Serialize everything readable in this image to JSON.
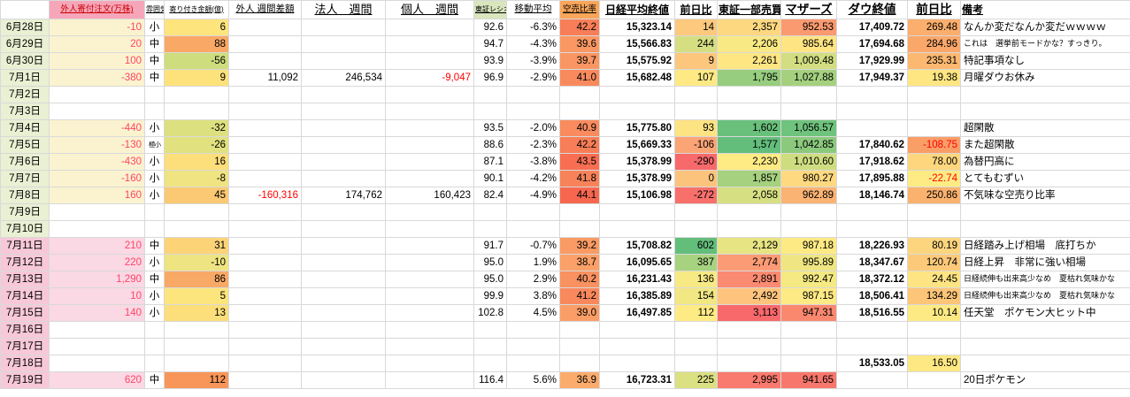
{
  "columns": [
    {
      "key": "date",
      "w": 55,
      "align": "c",
      "header": {
        "text": "",
        "cls": "h-small"
      }
    },
    {
      "key": "foreign-open-order",
      "w": 108,
      "align": "r",
      "fg": "#FF4466",
      "header": {
        "text": "外人寄付注文(万株)",
        "bg": "#F6A6B9",
        "fg": "#CC0000",
        "cls": "h-small"
      }
    },
    {
      "key": "mood",
      "w": 22,
      "align": "c",
      "header": {
        "text": "雰囲気",
        "cls": "h-tiny"
      }
    },
    {
      "key": "opening-amount",
      "w": 73,
      "align": "r",
      "header": {
        "text": "寄り付き金額(億)",
        "cls": "h-tiny"
      }
    },
    {
      "key": "foreign-weekly-diff",
      "w": 82,
      "align": "r",
      "header": {
        "text": "外人 週間差額",
        "cls": "h-mid"
      }
    },
    {
      "key": "corporate-weekly",
      "w": 95,
      "align": "r",
      "header": {
        "text": "法人　週間",
        "cls": "h-large"
      }
    },
    {
      "key": "individual-weekly",
      "w": 100,
      "align": "r",
      "header": {
        "text": "個人　週間",
        "cls": "h-large"
      }
    },
    {
      "key": "tse-ratio",
      "w": 37,
      "align": "r",
      "header": {
        "text": "東証レシオ",
        "bg": "#D9E5BD",
        "cls": "h-tiny"
      }
    },
    {
      "key": "moving-average",
      "w": 60,
      "align": "r",
      "header": {
        "text": "移動平均",
        "cls": "h-mid"
      }
    },
    {
      "key": "short-sell-ratio",
      "w": 45,
      "align": "r",
      "header": {
        "text": "空売比率",
        "bg": "#F9A65A",
        "cls": "h-small"
      }
    },
    {
      "key": "nikkei-close",
      "w": 85,
      "align": "r",
      "bold": true,
      "header": {
        "text": "日経平均終値",
        "cls": "h-bold"
      }
    },
    {
      "key": "nikkei-prev-diff",
      "w": 48,
      "align": "r",
      "header": {
        "text": "前日比",
        "cls": "h-bold"
      }
    },
    {
      "key": "tse1-turnover",
      "w": 72,
      "align": "r",
      "header": {
        "text": "東証一部売買",
        "cls": "h-bold"
      }
    },
    {
      "key": "mothers",
      "w": 63,
      "align": "r",
      "header": {
        "text": "マザーズ",
        "cls": "h-big"
      }
    },
    {
      "key": "dow-close",
      "w": 80,
      "align": "r",
      "bold": true,
      "header": {
        "text": "ダウ終値",
        "cls": "h-big"
      }
    },
    {
      "key": "dow-prev-diff",
      "w": 60,
      "align": "r",
      "header": {
        "text": "前日比",
        "cls": "h-big"
      }
    },
    {
      "key": "remarks",
      "w": 192,
      "align": "l",
      "headerAlign": "l",
      "header": {
        "text": "備考",
        "cls": "h-bold"
      }
    }
  ],
  "rows": [
    {
      "date": "6月28日",
      "cells": [
        {
          "v": "6月28日",
          "bg": "#E9F0D3"
        },
        {
          "v": "-10",
          "bg": "#FBF3CF"
        },
        {
          "v": "小"
        },
        {
          "v": "6",
          "bg": "#FDE47C"
        },
        null,
        null,
        null,
        {
          "v": "92.6"
        },
        {
          "v": "-6.3%"
        },
        {
          "v": "42.2",
          "bg": "#F87E58"
        },
        {
          "v": "15,323.14"
        },
        {
          "v": "14",
          "bg": "#FCC97D"
        },
        {
          "v": "2,357",
          "bg": "#FED881"
        },
        {
          "v": "952.53",
          "bg": "#FA9A70"
        },
        {
          "v": "17,409.72"
        },
        {
          "v": "269.48",
          "bg": "#FBAE6D"
        },
        {
          "v": "なんか変だなんか変だｗｗｗｗ"
        }
      ]
    },
    {
      "date": "6月29日",
      "cells": [
        {
          "v": "6月29日",
          "bg": "#E9F0D3"
        },
        {
          "v": "20",
          "bg": "#FBF3CF"
        },
        {
          "v": "中"
        },
        {
          "v": "88",
          "bg": "#F9A865"
        },
        null,
        null,
        null,
        {
          "v": "94.7"
        },
        {
          "v": "-4.3%"
        },
        {
          "v": "39.6",
          "bg": "#FA9763"
        },
        {
          "v": "15,566.83"
        },
        {
          "v": "244",
          "bg": "#D5DF82"
        },
        {
          "v": "2,206",
          "bg": "#F9E984"
        },
        {
          "v": "985.64",
          "bg": "#FEE483"
        },
        {
          "v": "17,694.68"
        },
        {
          "v": "284.96",
          "bg": "#FAA76A"
        },
        {
          "v": "これは　選挙前モードかな？すっきり。",
          "cls": "small"
        }
      ]
    },
    {
      "date": "6月30日",
      "cells": [
        {
          "v": "6月30日",
          "bg": "#E9F0D3"
        },
        {
          "v": "100",
          "bg": "#FBF3CF"
        },
        {
          "v": "中"
        },
        {
          "v": "-56",
          "bg": "#CEDD7D"
        },
        null,
        null,
        null,
        {
          "v": "93.9"
        },
        {
          "v": "-3.9%"
        },
        {
          "v": "39.7",
          "bg": "#FA9663"
        },
        {
          "v": "15,575.92"
        },
        {
          "v": "9",
          "bg": "#FCC77D"
        },
        {
          "v": "2,261",
          "bg": "#FEE683"
        },
        {
          "v": "1,009.48",
          "bg": "#D2DE81"
        },
        {
          "v": "17,929.99"
        },
        {
          "v": "235.31",
          "bg": "#FBB871"
        },
        {
          "v": "特記事項なし"
        }
      ]
    },
    {
      "date": "7月1日",
      "cells": [
        {
          "v": "7月1日",
          "bg": "#E9F0D3"
        },
        {
          "v": "-380",
          "bg": "#FBF3CF"
        },
        {
          "v": "中"
        },
        {
          "v": "9",
          "bg": "#FDE27B"
        },
        {
          "v": "11,092"
        },
        {
          "v": "246,534"
        },
        {
          "v": "-9,047",
          "fg": "#FF0000"
        },
        {
          "v": "96.9"
        },
        {
          "v": "-2.9%"
        },
        {
          "v": "41.0",
          "bg": "#F98A5E"
        },
        {
          "v": "15,682.48"
        },
        {
          "v": "107",
          "bg": "#FEE984"
        },
        {
          "v": "1,795",
          "bg": "#97CD7E"
        },
        {
          "v": "1,027.88",
          "bg": "#A5D17F"
        },
        {
          "v": "17,949.37"
        },
        {
          "v": "19.38",
          "bg": "#FEE683"
        },
        {
          "v": "月曜ダウお休み"
        }
      ]
    },
    {
      "date": "7月2日",
      "cells": [
        {
          "v": "7月2日",
          "bg": "#E9F0D3"
        },
        null,
        null,
        null,
        null,
        null,
        null,
        null,
        null,
        null,
        null,
        null,
        null,
        null,
        null,
        null,
        null
      ]
    },
    {
      "date": "7月3日",
      "cells": [
        {
          "v": "7月3日",
          "bg": "#E9F0D3"
        },
        null,
        null,
        null,
        null,
        null,
        null,
        null,
        null,
        null,
        null,
        null,
        null,
        null,
        null,
        null,
        null
      ]
    },
    {
      "date": "7月4日",
      "cells": [
        {
          "v": "7月4日",
          "bg": "#E9F0D3"
        },
        {
          "v": "-440",
          "bg": "#FBF3CF"
        },
        {
          "v": "小"
        },
        {
          "v": "-32",
          "bg": "#DDE07E"
        },
        null,
        null,
        null,
        {
          "v": "93.5"
        },
        {
          "v": "-2.0%"
        },
        {
          "v": "40.9",
          "bg": "#F98B5E"
        },
        {
          "v": "15,775.80"
        },
        {
          "v": "93",
          "bg": "#FEE383"
        },
        {
          "v": "1,602",
          "bg": "#69C07B"
        },
        {
          "v": "1,056.57",
          "bg": "#6FC37C"
        },
        null,
        null,
        {
          "v": "超閑散"
        }
      ]
    },
    {
      "date": "7月5日",
      "cells": [
        {
          "v": "7月5日",
          "bg": "#E9F0D3"
        },
        {
          "v": "-130",
          "bg": "#FBF3CF"
        },
        {
          "v": "極小",
          "cls": "tiny"
        },
        {
          "v": "-26",
          "bg": "#E1E17F"
        },
        null,
        null,
        null,
        {
          "v": "88.6"
        },
        {
          "v": "-2.3%"
        },
        {
          "v": "42.2",
          "bg": "#F87E58"
        },
        {
          "v": "15,669.33"
        },
        {
          "v": "-106",
          "bg": "#FBA476"
        },
        {
          "v": "1,577",
          "bg": "#63BE7B"
        },
        {
          "v": "1,042.85",
          "bg": "#8BC97D"
        },
        {
          "v": "17,840.62"
        },
        {
          "v": "-108.75",
          "bg": "#FA9E68",
          "fg": "#FF0000"
        },
        {
          "v": "また超閑散"
        }
      ]
    },
    {
      "date": "7月6日",
      "cells": [
        {
          "v": "7月6日",
          "bg": "#E9F0D3"
        },
        {
          "v": "-430",
          "bg": "#FBF3CF"
        },
        {
          "v": "小"
        },
        {
          "v": "16",
          "bg": "#FCDE7A"
        },
        null,
        null,
        null,
        {
          "v": "87.1"
        },
        {
          "v": "-3.8%"
        },
        {
          "v": "43.5",
          "bg": "#F76E52"
        },
        {
          "v": "15,378.99"
        },
        {
          "v": "-290",
          "bg": "#F8696B"
        },
        {
          "v": "2,230",
          "bg": "#FFEB84"
        },
        {
          "v": "1,010.60",
          "bg": "#CFDD81"
        },
        {
          "v": "17,918.62"
        },
        {
          "v": "78.00",
          "bg": "#FDD67E"
        },
        {
          "v": "為替円高に"
        }
      ]
    },
    {
      "date": "7月7日",
      "cells": [
        {
          "v": "7月7日",
          "bg": "#E9F0D3"
        },
        {
          "v": "-160",
          "bg": "#FBF3CF"
        },
        {
          "v": "小"
        },
        {
          "v": "-8",
          "bg": "#EFE481"
        },
        null,
        null,
        null,
        {
          "v": "90.1"
        },
        {
          "v": "-4.2%"
        },
        {
          "v": "41.8",
          "bg": "#F8825A"
        },
        {
          "v": "15,378.99"
        },
        {
          "v": "0",
          "bg": "#FCC37C"
        },
        {
          "v": "1,857",
          "bg": "#A6D17F"
        },
        {
          "v": "980.27",
          "bg": "#FED980"
        },
        {
          "v": "17,895.88"
        },
        {
          "v": "-22.74",
          "bg": "#FEEB84",
          "fg": "#FF0000"
        },
        {
          "v": "とてもむずい"
        }
      ]
    },
    {
      "date": "7月8日",
      "cells": [
        {
          "v": "7月8日",
          "bg": "#E9F0D3"
        },
        {
          "v": "160",
          "bg": "#FBF3CF"
        },
        {
          "v": "小"
        },
        {
          "v": "45",
          "bg": "#FBC973"
        },
        {
          "v": "-160,316",
          "fg": "#FF0000"
        },
        {
          "v": "174,762"
        },
        {
          "v": "160,423"
        },
        {
          "v": "82.4"
        },
        {
          "v": "-4.9%"
        },
        {
          "v": "44.1",
          "bg": "#F76750"
        },
        {
          "v": "15,106.98"
        },
        {
          "v": "-272",
          "bg": "#F8706C"
        },
        {
          "v": "2,058",
          "bg": "#D6DF82"
        },
        {
          "v": "962.89",
          "bg": "#FBB374"
        },
        {
          "v": "18,146.74"
        },
        {
          "v": "250.86",
          "bg": "#FBB26E"
        },
        {
          "v": "不気味な空売り比率"
        }
      ]
    },
    {
      "date": "7月9日",
      "cells": [
        {
          "v": "7月9日",
          "bg": "#E9F0D3"
        },
        null,
        null,
        null,
        null,
        null,
        null,
        null,
        null,
        null,
        null,
        null,
        null,
        null,
        null,
        null,
        null
      ]
    },
    {
      "date": "7月10日",
      "cells": [
        {
          "v": "7月10日",
          "bg": "#E9F0D3"
        },
        null,
        null,
        null,
        null,
        null,
        null,
        null,
        null,
        null,
        null,
        null,
        null,
        null,
        null,
        null,
        null
      ]
    },
    {
      "date": "7月11日",
      "cells": [
        {
          "v": "7月11日",
          "bg": "#F7C8D8"
        },
        {
          "v": "210",
          "bg": "#FAD8E4"
        },
        {
          "v": "中"
        },
        {
          "v": "31",
          "bg": "#FCD377"
        },
        null,
        null,
        null,
        {
          "v": "91.7"
        },
        {
          "v": "-0.7%"
        },
        {
          "v": "39.2",
          "bg": "#FA9B65"
        },
        {
          "v": "15,708.82"
        },
        {
          "v": "602",
          "bg": "#63BE7B"
        },
        {
          "v": "2,129",
          "bg": "#E7E483"
        },
        {
          "v": "987.18",
          "bg": "#FEEA84"
        },
        {
          "v": "18,226.93"
        },
        {
          "v": "80.19",
          "bg": "#FDD57E"
        },
        {
          "v": "日経踏み上げ相場　底打ちか"
        }
      ]
    },
    {
      "date": "7月12日",
      "cells": [
        {
          "v": "7月12日",
          "bg": "#F7C8D8"
        },
        {
          "v": "220",
          "bg": "#FAD8E4"
        },
        {
          "v": "小"
        },
        {
          "v": "-10",
          "bg": "#EEE481"
        },
        null,
        null,
        null,
        {
          "v": "95.0"
        },
        {
          "v": "1.9%"
        },
        {
          "v": "38.7",
          "bg": "#FAA068"
        },
        {
          "v": "16,095.65"
        },
        {
          "v": "387",
          "bg": "#A7D27F"
        },
        {
          "v": "2,774",
          "bg": "#FB9B75"
        },
        {
          "v": "995.89",
          "bg": "#EFE683"
        },
        {
          "v": "18,347.67"
        },
        {
          "v": "120.74",
          "bg": "#FCC97A"
        },
        {
          "v": "日経上昇　非常に強い相場"
        }
      ]
    },
    {
      "date": "7月13日",
      "cells": [
        {
          "v": "7月13日",
          "bg": "#F7C8D8"
        },
        {
          "v": "1,290",
          "bg": "#FAD8E4"
        },
        {
          "v": "中"
        },
        {
          "v": "86",
          "bg": "#F9A966"
        },
        null,
        null,
        null,
        {
          "v": "95.0"
        },
        {
          "v": "2.9%"
        },
        {
          "v": "40.2",
          "bg": "#F99160"
        },
        {
          "v": "16,231.43"
        },
        {
          "v": "136",
          "bg": "#F7E984"
        },
        {
          "v": "2,891",
          "bg": "#FA8A71"
        },
        {
          "v": "992.47",
          "bg": "#F5E983"
        },
        {
          "v": "18,372.12"
        },
        {
          "v": "24.45",
          "bg": "#FEE482"
        },
        {
          "v": "日経続伸も出来高少なめ　夏枯れ気味かな",
          "cls": "small"
        }
      ]
    },
    {
      "date": "7月14日",
      "cells": [
        {
          "v": "7月14日",
          "bg": "#F7C8D8"
        },
        {
          "v": "10",
          "bg": "#FAD8E4"
        },
        {
          "v": "小"
        },
        {
          "v": "5",
          "bg": "#FDE57D"
        },
        null,
        null,
        null,
        {
          "v": "99.9"
        },
        {
          "v": "3.8%"
        },
        {
          "v": "41.2",
          "bg": "#F9885D"
        },
        {
          "v": "16,385.89"
        },
        {
          "v": "154",
          "bg": "#F1E783"
        },
        {
          "v": "2,492",
          "bg": "#FEC47D"
        },
        {
          "v": "987.15",
          "bg": "#FEEA84"
        },
        {
          "v": "18,506.41"
        },
        {
          "v": "134.29",
          "bg": "#FCC578"
        },
        {
          "v": "日経続伸も出来高少なめ　夏枯れ気味かな",
          "cls": "small"
        }
      ]
    },
    {
      "date": "7月15日",
      "cells": [
        {
          "v": "7月15日",
          "bg": "#F7C8D8"
        },
        {
          "v": "140",
          "bg": "#FAD8E4"
        },
        {
          "v": "小"
        },
        {
          "v": "13",
          "bg": "#FCDF7B"
        },
        null,
        null,
        null,
        {
          "v": "102.8"
        },
        {
          "v": "4.5%"
        },
        {
          "v": "39.0",
          "bg": "#FA9D66"
        },
        {
          "v": "16,497.85"
        },
        {
          "v": "112",
          "bg": "#FFEB84"
        },
        {
          "v": "3,113",
          "bg": "#F8696B"
        },
        {
          "v": "947.31",
          "bg": "#F9886F"
        },
        {
          "v": "18,516.55"
        },
        {
          "v": "10.14",
          "bg": "#FEEA84"
        },
        {
          "v": "任天堂　ポケモン大ヒット中"
        }
      ]
    },
    {
      "date": "7月16日",
      "cells": [
        {
          "v": "7月16日",
          "bg": "#F7C8D8"
        },
        null,
        null,
        null,
        null,
        null,
        null,
        null,
        null,
        null,
        null,
        null,
        null,
        null,
        null,
        null,
        null
      ]
    },
    {
      "date": "7月17日",
      "cells": [
        {
          "v": "7月17日",
          "bg": "#F7C8D8"
        },
        null,
        null,
        null,
        null,
        null,
        null,
        null,
        null,
        null,
        null,
        null,
        null,
        null,
        null,
        null,
        null
      ]
    },
    {
      "date": "7月18日",
      "cells": [
        {
          "v": "7月18日",
          "bg": "#F7C8D8"
        },
        null,
        null,
        null,
        null,
        null,
        null,
        null,
        null,
        null,
        null,
        null,
        null,
        null,
        {
          "v": "18,533.05"
        },
        {
          "v": "16.50",
          "bg": "#FEE883"
        },
        null
      ]
    },
    {
      "date": "7月19日",
      "cells": [
        {
          "v": "7月19日",
          "bg": "#F7C8D8"
        },
        {
          "v": "620",
          "bg": "#FAD8E4"
        },
        {
          "v": "中"
        },
        {
          "v": "112",
          "bg": "#F89659"
        },
        null,
        null,
        null,
        {
          "v": "116.4"
        },
        {
          "v": "5.6%"
        },
        {
          "v": "36.9",
          "bg": "#FBAC6D"
        },
        {
          "v": "16,723.31"
        },
        {
          "v": "225",
          "bg": "#DBE082"
        },
        {
          "v": "2,995",
          "bg": "#F97A6E"
        },
        {
          "v": "941.65",
          "bg": "#F8776C"
        },
        null,
        null,
        {
          "v": "20日ポケモン"
        }
      ]
    }
  ]
}
